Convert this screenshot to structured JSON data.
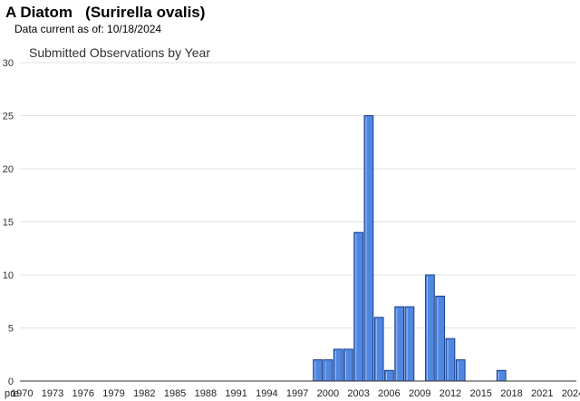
{
  "header": {
    "title": "A Diatom   (Surirella ovalis)",
    "subtitle": "Data current as of: 10/18/2024"
  },
  "chart_data": {
    "type": "bar",
    "title": "Submitted Observations by Year",
    "xlabel": "",
    "ylabel": "",
    "ylim": [
      0,
      30
    ],
    "yticks": [
      0,
      5,
      10,
      15,
      20,
      25,
      30
    ],
    "grid": true,
    "legend": "none",
    "bar_color": "#4f86e0",
    "bar_border": "#1a3f8a",
    "categories": [
      "pre",
      "1970",
      "1971",
      "1972",
      "1973",
      "1974",
      "1975",
      "1976",
      "1977",
      "1978",
      "1979",
      "1980",
      "1981",
      "1982",
      "1983",
      "1984",
      "1985",
      "1986",
      "1987",
      "1988",
      "1989",
      "1990",
      "1991",
      "1992",
      "1993",
      "1994",
      "1995",
      "1996",
      "1997",
      "1998",
      "1999",
      "2000",
      "2001",
      "2002",
      "2003",
      "2004",
      "2005",
      "2006",
      "2007",
      "2008",
      "2009",
      "2010",
      "2011",
      "2012",
      "2013",
      "2014",
      "2015",
      "2016",
      "2017",
      "2018",
      "2019",
      "2020",
      "2021",
      "2022",
      "2023",
      "2024"
    ],
    "tick_labels": [
      "pre",
      "1970",
      "1973",
      "1976",
      "1979",
      "1982",
      "1985",
      "1988",
      "1991",
      "1994",
      "1997",
      "2000",
      "2003",
      "2006",
      "2009",
      "2012",
      "2015",
      "2018",
      "2021",
      "2024"
    ],
    "values": [
      0,
      0,
      0,
      0,
      0,
      0,
      0,
      0,
      0,
      0,
      0,
      0,
      0,
      0,
      0,
      0,
      0,
      0,
      0,
      0,
      0,
      0,
      0,
      0,
      0,
      0,
      0,
      0,
      0,
      0,
      2,
      2,
      3,
      3,
      14,
      25,
      6,
      1,
      7,
      7,
      0,
      10,
      8,
      4,
      2,
      0,
      0,
      0,
      1,
      0,
      0,
      0,
      0,
      0,
      0,
      0
    ]
  }
}
